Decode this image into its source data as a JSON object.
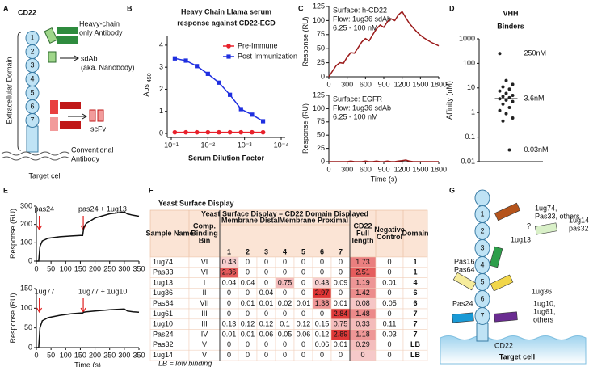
{
  "panel_labels": [
    "A",
    "B",
    "C",
    "D",
    "E",
    "F",
    "G"
  ],
  "panel_a": {
    "title": "CD22",
    "domains": [
      "1",
      "2",
      "3",
      "4",
      "5",
      "6",
      "7"
    ],
    "side_label": "Extracellular Domain",
    "heavy_chain": [
      "Heavy-chain",
      "only Antibody"
    ],
    "sdab": [
      "sdAb",
      "(aka. Nanobody)"
    ],
    "scfv": "scFv",
    "conventional": [
      "Conventional",
      "Antibody"
    ],
    "cell": "Target cell"
  },
  "chart_data": [
    {
      "type": "line",
      "title": [
        "Heavy Chain Llama serum",
        "response against CD22-ECD"
      ],
      "y_label": "Abs",
      "y_label_sub": "450",
      "x_label": "Serum Dilution Factor",
      "x_log": true,
      "xlim": [
        0.1,
        0.0001
      ],
      "xticks": [
        {
          "value": 0.1,
          "label": "10⁻¹"
        },
        {
          "value": 0.01,
          "label": "10⁻²"
        },
        {
          "value": 0.001,
          "label": "10⁻³"
        },
        {
          "value": 0.0001,
          "label": "10⁻⁴"
        }
      ],
      "ylim": [
        0,
        4.4
      ],
      "yticks": [
        0,
        1,
        2,
        3,
        4
      ],
      "legend": "upper right",
      "x": [
        0.08,
        0.04,
        0.02,
        0.01,
        0.005,
        0.0025,
        0.00125,
        0.000625,
        0.0003125
      ],
      "series": [
        {
          "name": "Pre-Immune",
          "color": "#e8212b",
          "marker": "circle",
          "values": [
            0.05,
            0.05,
            0.05,
            0.05,
            0.05,
            0.05,
            0.05,
            0.05,
            0.05
          ]
        },
        {
          "name": "Post Immunization",
          "color": "#1f2fe0",
          "marker": "square",
          "values": [
            3.4,
            3.3,
            3.05,
            2.7,
            2.3,
            1.75,
            1.1,
            0.85,
            0.55
          ]
        }
      ]
    },
    {
      "type": "line",
      "annotation": [
        "Surface: h-CD22",
        "Flow: 1ug36 sdAb",
        "6.25 - 100 nM"
      ],
      "y_label": "Response (RU)",
      "xlim": [
        0,
        1800
      ],
      "xticks": [
        0,
        300,
        600,
        900,
        1200,
        1500,
        1800
      ],
      "ylim": [
        0,
        125
      ],
      "yticks": [
        0,
        25,
        50,
        75,
        100,
        125
      ],
      "x": [
        0,
        60,
        120,
        180,
        240,
        300,
        360,
        420,
        480,
        540,
        600,
        660,
        720,
        780,
        840,
        900,
        960,
        1020,
        1080,
        1140,
        1200,
        1260,
        1320,
        1380,
        1440,
        1500,
        1560,
        1620,
        1680,
        1740,
        1800
      ],
      "series": [
        {
          "color": "#9b1b1b",
          "values": [
            0,
            10,
            20,
            25,
            24,
            35,
            43,
            42,
            52,
            62,
            68,
            64,
            75,
            85,
            92,
            88,
            98,
            103,
            100,
            110,
            116,
            105,
            95,
            87,
            80,
            74,
            69,
            65,
            61,
            58,
            55
          ]
        }
      ]
    },
    {
      "type": "line",
      "annotation": [
        "Surface: EGFR",
        "Flow: 1ug36 sdAb",
        "6.25 - 100 nM"
      ],
      "y_label": "Response (RU)",
      "x_label": "Time (s)",
      "xlim": [
        0,
        1800
      ],
      "xticks": [
        0,
        300,
        600,
        900,
        1200,
        1500,
        1800
      ],
      "ylim": [
        0,
        125
      ],
      "yticks": [
        0,
        25,
        50,
        75,
        100,
        125
      ],
      "x": [
        0,
        60,
        120,
        180,
        240,
        300,
        360,
        420,
        480,
        540,
        600,
        660,
        720,
        780,
        840,
        900,
        960,
        1020,
        1080,
        1140,
        1200,
        1260,
        1320,
        1380,
        1440,
        1500,
        1560,
        1620,
        1680,
        1740,
        1800
      ],
      "series": [
        {
          "color": "#9b1b1b",
          "values": [
            0,
            0,
            0,
            0,
            0,
            0,
            1,
            0,
            0,
            0,
            1,
            0,
            0,
            1,
            0,
            0,
            1,
            0,
            0,
            1,
            2,
            3,
            1,
            0,
            0,
            0,
            0,
            0,
            0,
            0,
            0
          ]
        }
      ]
    },
    {
      "type": "strip",
      "title": [
        "VHH",
        "Binders"
      ],
      "y_label": "Affinity (nM)",
      "y_log": true,
      "ylim": [
        0.01,
        1000
      ],
      "yticks": [
        0.01,
        0.1,
        1,
        10,
        100,
        1000
      ],
      "color": "#222222",
      "values": [
        250,
        20,
        14,
        11,
        9,
        7.5,
        6,
        5,
        4.5,
        4,
        3.6,
        3.2,
        2.8,
        2.2,
        1.6,
        1.2,
        0.9,
        0.6,
        0.45,
        0.03
      ],
      "median": 3.6,
      "annotations": [
        {
          "value": 250,
          "label": "250nM"
        },
        {
          "value": 3.6,
          "label": "3.6nM"
        },
        {
          "value": 0.03,
          "label": "0.03nM"
        }
      ]
    },
    {
      "type": "line",
      "y_label": "Response (RU)",
      "xlim": [
        0,
        350
      ],
      "xticks": [
        0,
        50,
        100,
        150,
        200,
        250,
        300,
        350
      ],
      "ylim": [
        0,
        300
      ],
      "yticks": [
        0,
        100,
        200,
        300
      ],
      "x": [
        0,
        8,
        12,
        20,
        40,
        80,
        120,
        150,
        158,
        162,
        170,
        200,
        250,
        300,
        310,
        330,
        350
      ],
      "series": [
        {
          "color": "#111111",
          "values": [
            0,
            0,
            80,
            110,
            125,
            133,
            137,
            140,
            140,
            185,
            205,
            235,
            258,
            268,
            258,
            250,
            245
          ]
        }
      ],
      "events": [
        {
          "label": "pas24",
          "x": 10
        },
        {
          "label": "pas24 + 1ug13",
          "x": 160
        }
      ]
    },
    {
      "type": "line",
      "y_label": "Response (RU)",
      "x_label": "Time (s)",
      "xlim": [
        0,
        350
      ],
      "xticks": [
        0,
        50,
        100,
        150,
        200,
        250,
        300,
        350
      ],
      "ylim": [
        0,
        150
      ],
      "yticks": [
        0,
        50,
        100,
        150
      ],
      "x": [
        0,
        8,
        12,
        20,
        40,
        80,
        120,
        150,
        158,
        162,
        170,
        200,
        250,
        300,
        310,
        330,
        350
      ],
      "series": [
        {
          "color": "#111111",
          "values": [
            0,
            0,
            50,
            68,
            76,
            82,
            86,
            88,
            88,
            90,
            91,
            93,
            96,
            98,
            93,
            91,
            90
          ]
        }
      ],
      "events": [
        {
          "label": "1ug77",
          "x": 10
        },
        {
          "label": "1ug77 + 1ug10",
          "x": 160
        }
      ]
    }
  ],
  "table_f": {
    "title": "Yeast Surface Display",
    "group_header": "Yeast Surface Display – CD22 Domain Displayed",
    "distal": "Membrane Distal",
    "arrow": "→",
    "proximal": "Membrane Proximal",
    "columns": [
      [
        "Sample Name"
      ],
      [
        "Comp.",
        "Binding",
        "Bin"
      ],
      [
        "1"
      ],
      [
        "2"
      ],
      [
        "3"
      ],
      [
        "4"
      ],
      [
        "5"
      ],
      [
        "6"
      ],
      [
        "7"
      ],
      [
        "CD22",
        "Full",
        "length"
      ],
      [
        "Negative",
        "Control"
      ],
      [
        "Domain"
      ]
    ],
    "rows": [
      [
        "1ug74",
        "VI",
        0.43,
        0,
        0,
        0,
        0,
        0,
        0,
        1.73,
        0,
        1
      ],
      [
        "Pas33",
        "VI",
        2.36,
        0,
        0,
        0,
        0,
        0,
        0,
        2.51,
        0,
        1
      ],
      [
        "1ug13",
        "I",
        0.04,
        0.04,
        0,
        0.75,
        0,
        0.43,
        0.09,
        1.19,
        0.01,
        4
      ],
      [
        "1ug36",
        "II",
        0,
        0,
        0.04,
        0,
        0,
        2.97,
        0,
        1.42,
        0,
        6
      ],
      [
        "Pas64",
        "VII",
        0,
        0.01,
        0.01,
        0.02,
        0.01,
        1.38,
        0.01,
        0.08,
        0.05,
        6
      ],
      [
        "1ug61",
        "III",
        0,
        0,
        0,
        0,
        0,
        0,
        2.84,
        1.48,
        0,
        7
      ],
      [
        "1ug10",
        "III",
        0.13,
        0.12,
        0.12,
        0.1,
        0.12,
        0.15,
        0.75,
        0.33,
        0.11,
        7
      ],
      [
        "Pas24",
        "IV",
        0.01,
        0.01,
        0.06,
        0.05,
        0.06,
        0.12,
        2.89,
        1.18,
        0.03,
        7
      ],
      [
        "Pas32",
        "V",
        0,
        0,
        0,
        0,
        0,
        0.06,
        0.01,
        0.29,
        0,
        "LB"
      ],
      [
        "1ug14",
        "V",
        0,
        0,
        0,
        0,
        0,
        0,
        0,
        0,
        0,
        "LB"
      ]
    ],
    "footnote": "LB = low binding"
  },
  "panel_g": {
    "domains": [
      "1",
      "2",
      "3",
      "4",
      "5",
      "6",
      "7"
    ],
    "stem_label": "CD22",
    "cell": "Target cell",
    "binders": [
      [
        "1ug74,",
        "Pas33, others"
      ],
      [
        "?"
      ],
      [
        "1ug14",
        "pas32"
      ],
      [
        "1ug13"
      ],
      [
        "Pas16",
        "Pas64"
      ],
      [
        "1ug36"
      ],
      [
        "1ug10,",
        "1ug61,",
        "others"
      ],
      [
        "Pas24"
      ]
    ]
  }
}
